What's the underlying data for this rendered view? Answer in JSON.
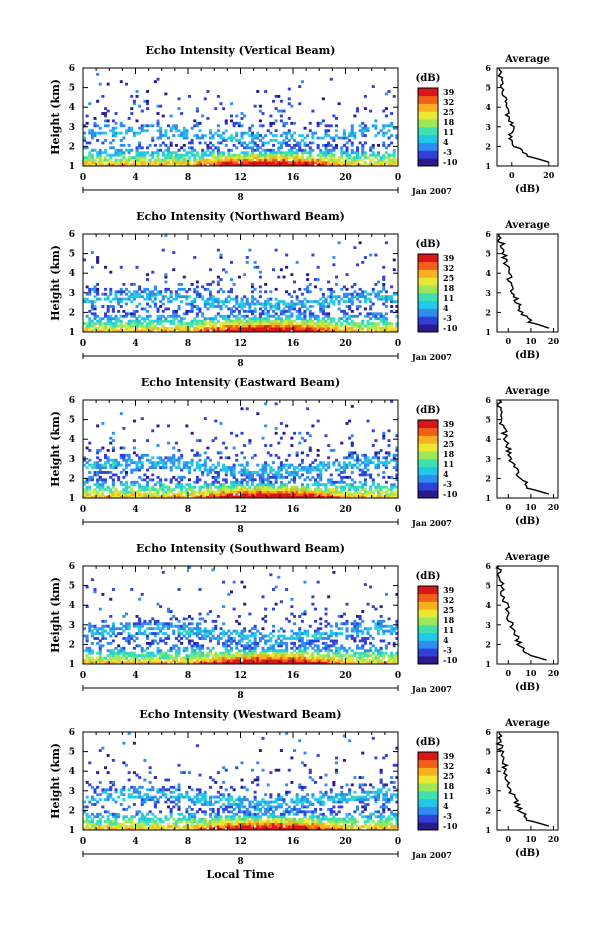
{
  "chart_data": {
    "type": "heatmap",
    "colorbar": {
      "unit": "(dB)",
      "ticks": [
        "39",
        "32",
        "25",
        "18",
        "11",
        "4",
        "-3",
        "-10"
      ],
      "range": [
        -10,
        39
      ],
      "colors": [
        "#2a1a8a",
        "#3040d8",
        "#2f8cf0",
        "#22c8e8",
        "#3ee0b0",
        "#9ce85a",
        "#e8e832",
        "#f8b020",
        "#f06018",
        "#d81818"
      ]
    },
    "panels": [
      {
        "title": "Echo Intensity (Vertical Beam)",
        "ylabel": "Height (km)",
        "yticks": [
          "1",
          "2",
          "3",
          "4",
          "5",
          "6"
        ],
        "ylim": [
          1,
          6
        ],
        "xticks": [
          "0",
          "4",
          "8",
          "12",
          "16",
          "20",
          "0"
        ],
        "xlim": [
          0,
          24
        ],
        "date_tick": "8",
        "date_label": "Jan 2007",
        "avg": {
          "title": "Average",
          "xlabel": "(dB)",
          "xticks": [
            "0",
            "20"
          ],
          "xlim": [
            -8,
            25
          ],
          "heights": [
            1.2,
            1.5,
            2.0,
            2.5,
            3.0,
            3.5,
            4.0,
            4.5,
            5.0,
            5.5,
            6.0
          ],
          "values": [
            20,
            9,
            2,
            -1,
            1,
            -2,
            -3,
            -4,
            -5,
            -6,
            -7
          ]
        }
      },
      {
        "title": "Echo Intensity (Northward Beam)",
        "ylabel": "Height (km)",
        "yticks": [
          "1",
          "2",
          "3",
          "4",
          "5",
          "6"
        ],
        "ylim": [
          1,
          6
        ],
        "xticks": [
          "0",
          "4",
          "8",
          "12",
          "16",
          "20",
          "0"
        ],
        "xlim": [
          0,
          24
        ],
        "date_tick": "8",
        "date_label": "Jan 2007",
        "avg": {
          "title": "Average",
          "xlabel": "(dB)",
          "xticks": [
            "0",
            "10",
            "20"
          ],
          "xlim": [
            -5,
            22
          ],
          "heights": [
            1.2,
            1.5,
            2.0,
            2.5,
            3.0,
            3.5,
            4.0,
            4.5,
            5.0,
            5.5,
            6.0
          ],
          "values": [
            18,
            10,
            6,
            4,
            2,
            1,
            0,
            -1,
            -2,
            -3,
            -4
          ]
        }
      },
      {
        "title": "Echo Intensity (Eastward Beam)",
        "ylabel": "Height (km)",
        "yticks": [
          "1",
          "2",
          "3",
          "4",
          "5",
          "6"
        ],
        "ylim": [
          1,
          6
        ],
        "xticks": [
          "0",
          "4",
          "8",
          "12",
          "16",
          "20",
          "0"
        ],
        "xlim": [
          0,
          24
        ],
        "date_tick": "8",
        "date_label": "Jan 2007",
        "avg": {
          "title": "Average",
          "xlabel": "(dB)",
          "xticks": [
            "0",
            "10",
            "20"
          ],
          "xlim": [
            -5,
            22
          ],
          "heights": [
            1.2,
            1.5,
            2.0,
            2.5,
            3.0,
            3.5,
            4.0,
            4.5,
            5.0,
            5.5,
            6.0
          ],
          "values": [
            18,
            9,
            6,
            3,
            1,
            0,
            -1,
            -2,
            -3,
            -4,
            -4
          ]
        }
      },
      {
        "title": "Echo Intensity (Southward Beam)",
        "ylabel": "Height (km)",
        "yticks": [
          "1",
          "2",
          "3",
          "4",
          "5",
          "6"
        ],
        "ylim": [
          1,
          6
        ],
        "xticks": [
          "0",
          "4",
          "8",
          "12",
          "16",
          "20",
          "0"
        ],
        "xlim": [
          0,
          24
        ],
        "date_tick": "8",
        "date_label": "Jan 2007",
        "avg": {
          "title": "Average",
          "xlabel": "(dB)",
          "xticks": [
            "0",
            "10",
            "20"
          ],
          "xlim": [
            -5,
            22
          ],
          "heights": [
            1.2,
            1.5,
            2.0,
            2.5,
            3.0,
            3.5,
            4.0,
            4.5,
            5.0,
            5.5,
            6.0
          ],
          "values": [
            17,
            8,
            5,
            3,
            1,
            0,
            -1,
            -2,
            -3,
            -4,
            -4
          ]
        }
      },
      {
        "title": "Echo Intensity (Westward Beam)",
        "ylabel": "Height (km)",
        "yticks": [
          "1",
          "2",
          "3",
          "4",
          "5",
          "6"
        ],
        "ylim": [
          1,
          6
        ],
        "xticks": [
          "0",
          "4",
          "8",
          "12",
          "16",
          "20",
          "0"
        ],
        "xlim": [
          0,
          24
        ],
        "date_tick": "8",
        "date_label": "Jan 2007",
        "xlabel": "Local Time",
        "avg": {
          "title": "Average",
          "xlabel": "(dB)",
          "xticks": [
            "0",
            "10",
            "20"
          ],
          "xlim": [
            -5,
            22
          ],
          "heights": [
            1.2,
            1.5,
            2.0,
            2.5,
            3.0,
            3.5,
            4.0,
            4.5,
            5.0,
            5.5,
            6.0
          ],
          "values": [
            18,
            9,
            5,
            3,
            1,
            0,
            -1,
            -2,
            -3,
            -4,
            -4
          ]
        }
      }
    ]
  }
}
